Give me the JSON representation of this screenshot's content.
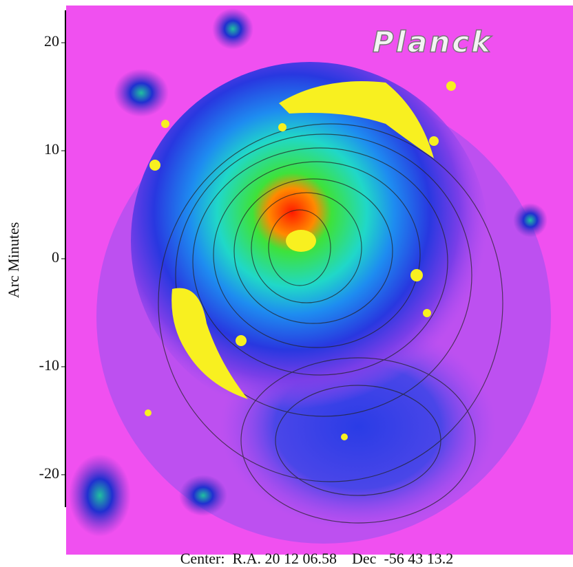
{
  "axis": {
    "label": "Arc Minutes",
    "ticks": [
      20,
      10,
      0,
      -10,
      -20
    ],
    "lim": [
      -23,
      23
    ]
  },
  "image": {
    "title": "Planck"
  },
  "caption": "Center:  R.A. 20 12 06.58    Dec  -56 43 13.2"
}
